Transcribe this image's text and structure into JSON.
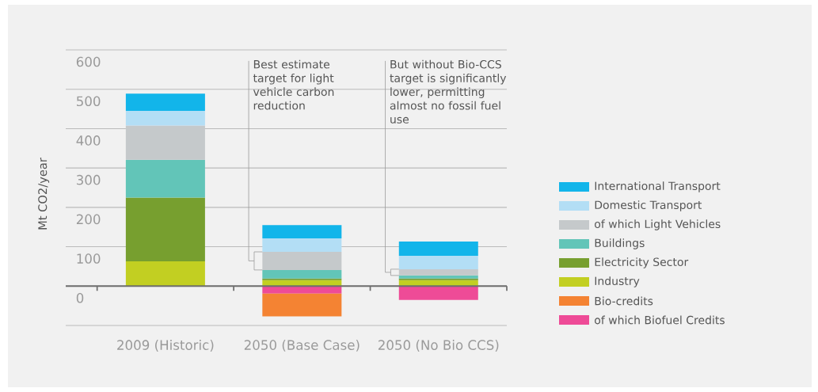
{
  "chart_data": {
    "type": "bar",
    "stacked": true,
    "ylabel": "Mt CO2/year",
    "categories": [
      "2009 (Historic)",
      "2050 (Base Case)",
      "2050 (No Bio CCS)"
    ],
    "series": [
      {
        "name": "Industry",
        "color": "#c2cf22",
        "values": [
          63,
          15,
          15
        ]
      },
      {
        "name": "Electricity Sector",
        "color": "#779f2f",
        "values": [
          162,
          4,
          4
        ]
      },
      {
        "name": "Buildings",
        "color": "#62c5b8",
        "values": [
          96,
          22,
          8
        ]
      },
      {
        "name": "of which Light Vehicles",
        "color": "#c5c9cb",
        "values": [
          87,
          46,
          16
        ]
      },
      {
        "name": "Domestic Transport",
        "color": "#b3def5",
        "values": [
          37,
          34,
          34
        ]
      },
      {
        "name": "International Transport",
        "color": "#12b5ea",
        "values": [
          44,
          34,
          36
        ]
      },
      {
        "name": "of which Biofuel Credits",
        "color": "#ee4b97",
        "values": [
          null,
          -19,
          -35
        ]
      },
      {
        "name": "Bio-credits",
        "color": "#f48333",
        "values": [
          null,
          -58,
          null
        ]
      }
    ],
    "ylim": [
      -100,
      600
    ],
    "yticks": [
      {
        "value": -100,
        "label": null
      },
      0,
      100,
      200,
      300,
      400,
      500,
      600
    ],
    "grid": "y",
    "legend": "right",
    "annotations": [
      "Best estimate target for light vehicle carbon reduction",
      "But without Bio-CCS target is significantly lower, permitting almost no fossil fuel use"
    ]
  }
}
